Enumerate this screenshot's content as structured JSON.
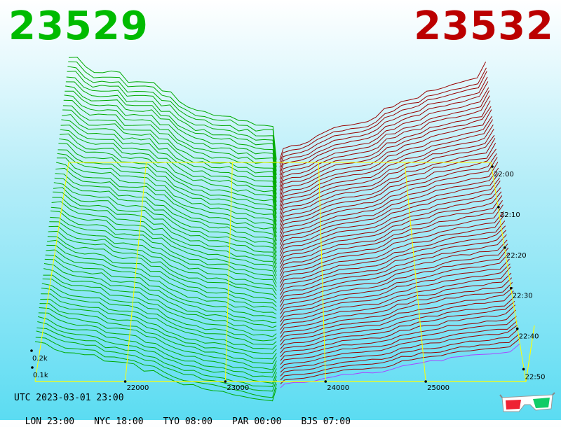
{
  "colors": {
    "bid": "#00bb00",
    "ask": "#bb0000",
    "grid": "#ffff00",
    "bid_line": "#00aa00",
    "ask_line": "#990000",
    "last_ask_line": "#aa44ff"
  },
  "header": {
    "bid_price": "23529",
    "ask_price": "23532"
  },
  "footer": {
    "utc": "UTC 2023-03-01 23:00",
    "zones": [
      "LON 23:00",
      "NYC 18:00",
      "TYO 08:00",
      "PAR 00:00",
      "BJS 07:00"
    ]
  },
  "icons": {
    "toggle": "3d-glasses-icon"
  },
  "chart_data": {
    "type": "area",
    "x_axis": {
      "ticks": [
        "22000",
        "23000",
        "24000",
        "25000"
      ],
      "range": [
        21100,
        26000
      ]
    },
    "time_axis": {
      "ticks": [
        "22:00",
        "22:10",
        "22:20",
        "22:30",
        "22:40",
        "22:50"
      ],
      "range": [
        "21:55",
        "23:00"
      ]
    },
    "volume_axis": {
      "ticks": [
        "0.1k",
        "0.2k"
      ]
    },
    "mid_price": 23530,
    "series": [
      {
        "name": "",
        "side": "bid"
      },
      {
        "name": "",
        "side": "ask"
      }
    ]
  }
}
